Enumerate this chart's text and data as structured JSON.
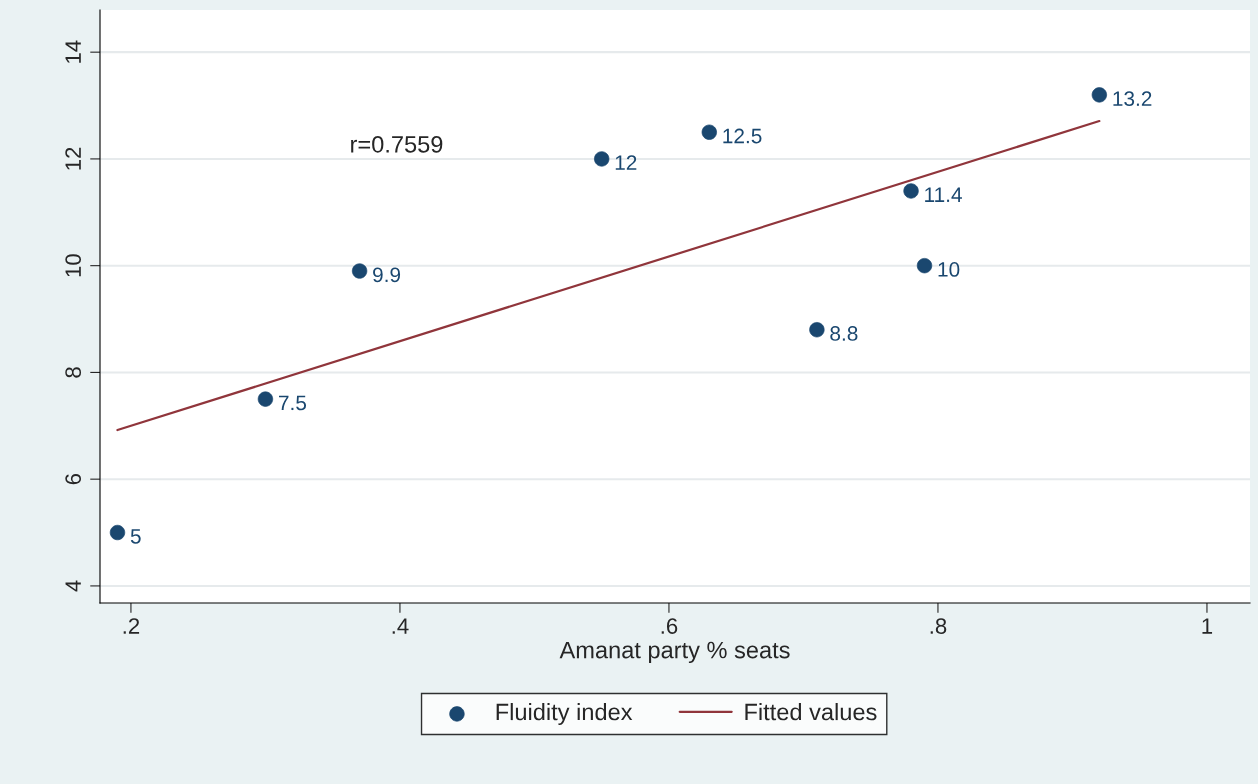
{
  "chart_data": {
    "type": "scatter",
    "xlabel": "Amanat party % seats",
    "series": [
      {
        "name": "Fluidity index",
        "color": "#1a476f",
        "marker": "circle",
        "x": [
          0.19,
          0.3,
          0.37,
          0.55,
          0.63,
          0.71,
          0.78,
          0.79,
          0.92
        ],
        "values": [
          5,
          7.5,
          9.9,
          12,
          12.5,
          8.8,
          11.4,
          10,
          13.2
        ],
        "data_labels": true
      },
      {
        "name": "Fitted values",
        "type": "line",
        "color": "#90353b",
        "marker": "none",
        "line_style": "solid",
        "x": [
          0.19,
          0.92
        ],
        "values": [
          6.92,
          12.71
        ]
      }
    ],
    "annotations": [
      "r=0.7559"
    ],
    "xlim": [
      0.177,
      1.032
    ],
    "ylim": [
      3.68,
      14.79
    ],
    "xticks": [
      {
        "value": 0.2,
        "label": ".2"
      },
      {
        "value": 0.4,
        "label": ".4"
      },
      {
        "value": 0.6,
        "label": ".6"
      },
      {
        "value": 0.8,
        "label": ".8"
      },
      1
    ],
    "yticks": [
      4,
      6,
      8,
      10,
      12,
      14
    ],
    "grid": "y",
    "legend": "bottom"
  }
}
